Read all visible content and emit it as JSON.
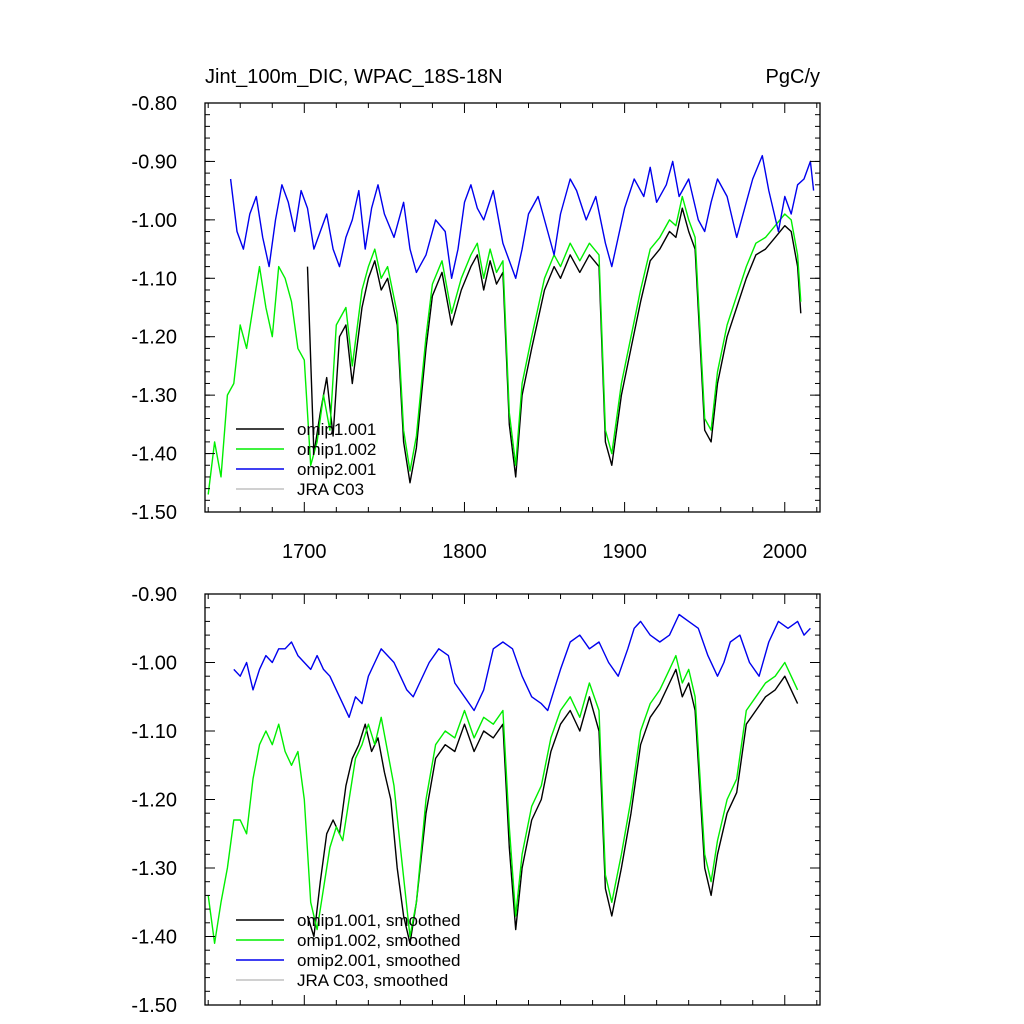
{
  "chart_data": [
    {
      "type": "line",
      "title": "Jint_100m_DIC, WPAC_18S-18N",
      "units": "PgC/y",
      "xlabel": "",
      "ylabel": "",
      "xlim": [
        1638,
        2022
      ],
      "ylim": [
        -1.5,
        -0.8
      ],
      "xticks": [
        1700,
        1800,
        1900,
        2000
      ],
      "xtick_labels": [
        "1700",
        "1800",
        "1900",
        "2000"
      ],
      "yticks": [
        -0.8,
        -0.9,
        -1.0,
        -1.1,
        -1.2,
        -1.3,
        -1.4,
        -1.5
      ],
      "ytick_labels": [
        "-0.80",
        "-0.90",
        "-1.00",
        "-1.10",
        "-1.20",
        "-1.30",
        "-1.40",
        "-1.50"
      ],
      "legend": "bottom-left",
      "series": [
        {
          "name": "omip1.001",
          "color": "#000000",
          "x": [
            1702,
            1706,
            1710,
            1714,
            1718,
            1722,
            1726,
            1730,
            1736,
            1740,
            1744,
            1748,
            1752,
            1758,
            1762,
            1766,
            1770,
            1776,
            1780,
            1786,
            1792,
            1798,
            1804,
            1808,
            1812,
            1816,
            1820,
            1824,
            1828,
            1832,
            1836,
            1842,
            1846,
            1850,
            1856,
            1860,
            1866,
            1872,
            1878,
            1884,
            1888,
            1892,
            1898,
            1904,
            1910,
            1916,
            1922,
            1928,
            1932,
            1936,
            1940,
            1944,
            1950,
            1954,
            1958,
            1964,
            1970,
            1976,
            1982,
            1988,
            1994,
            2000,
            2004,
            2008,
            2010
          ],
          "values": [
            -1.08,
            -1.4,
            -1.33,
            -1.27,
            -1.37,
            -1.2,
            -1.18,
            -1.28,
            -1.15,
            -1.1,
            -1.07,
            -1.12,
            -1.1,
            -1.18,
            -1.38,
            -1.45,
            -1.39,
            -1.22,
            -1.13,
            -1.09,
            -1.18,
            -1.12,
            -1.08,
            -1.06,
            -1.12,
            -1.07,
            -1.11,
            -1.09,
            -1.35,
            -1.44,
            -1.3,
            -1.22,
            -1.17,
            -1.12,
            -1.08,
            -1.1,
            -1.06,
            -1.09,
            -1.06,
            -1.08,
            -1.38,
            -1.42,
            -1.3,
            -1.22,
            -1.14,
            -1.07,
            -1.05,
            -1.02,
            -1.03,
            -0.98,
            -1.02,
            -1.05,
            -1.36,
            -1.38,
            -1.28,
            -1.2,
            -1.15,
            -1.1,
            -1.06,
            -1.05,
            -1.03,
            -1.01,
            -1.02,
            -1.08,
            -1.16
          ]
        },
        {
          "name": "omip1.002",
          "color": "#00ee00",
          "x": [
            1640,
            1644,
            1648,
            1652,
            1656,
            1660,
            1664,
            1668,
            1672,
            1676,
            1680,
            1684,
            1688,
            1692,
            1696,
            1700,
            1704,
            1708,
            1712,
            1716,
            1720,
            1726,
            1730,
            1736,
            1740,
            1744,
            1748,
            1752,
            1758,
            1762,
            1766,
            1770,
            1776,
            1780,
            1786,
            1792,
            1798,
            1804,
            1808,
            1812,
            1816,
            1820,
            1824,
            1828,
            1832,
            1836,
            1842,
            1846,
            1850,
            1856,
            1860,
            1866,
            1872,
            1878,
            1884,
            1888,
            1892,
            1898,
            1904,
            1910,
            1916,
            1922,
            1928,
            1932,
            1936,
            1940,
            1944,
            1950,
            1954,
            1958,
            1964,
            1970,
            1976,
            1982,
            1988,
            1994,
            2000,
            2004,
            2008,
            2010
          ],
          "values": [
            -1.47,
            -1.38,
            -1.44,
            -1.3,
            -1.28,
            -1.18,
            -1.22,
            -1.15,
            -1.08,
            -1.15,
            -1.2,
            -1.08,
            -1.1,
            -1.14,
            -1.22,
            -1.24,
            -1.42,
            -1.38,
            -1.3,
            -1.36,
            -1.18,
            -1.15,
            -1.25,
            -1.12,
            -1.08,
            -1.05,
            -1.1,
            -1.08,
            -1.16,
            -1.36,
            -1.43,
            -1.37,
            -1.2,
            -1.11,
            -1.07,
            -1.16,
            -1.1,
            -1.06,
            -1.04,
            -1.1,
            -1.05,
            -1.09,
            -1.07,
            -1.33,
            -1.42,
            -1.28,
            -1.2,
            -1.15,
            -1.1,
            -1.06,
            -1.08,
            -1.04,
            -1.07,
            -1.04,
            -1.06,
            -1.36,
            -1.4,
            -1.28,
            -1.2,
            -1.12,
            -1.05,
            -1.03,
            -1.0,
            -1.01,
            -0.96,
            -1.0,
            -1.03,
            -1.34,
            -1.36,
            -1.26,
            -1.18,
            -1.13,
            -1.08,
            -1.04,
            -1.03,
            -1.01,
            -0.99,
            -1.0,
            -1.06,
            -1.14
          ]
        },
        {
          "name": "omip2.001",
          "color": "#0000ee",
          "x": [
            1654,
            1658,
            1662,
            1666,
            1670,
            1674,
            1678,
            1682,
            1686,
            1690,
            1694,
            1698,
            1702,
            1706,
            1710,
            1714,
            1718,
            1722,
            1726,
            1730,
            1734,
            1738,
            1742,
            1746,
            1750,
            1756,
            1762,
            1766,
            1770,
            1776,
            1782,
            1788,
            1792,
            1796,
            1800,
            1804,
            1808,
            1812,
            1818,
            1824,
            1828,
            1832,
            1836,
            1840,
            1846,
            1852,
            1856,
            1860,
            1866,
            1870,
            1876,
            1882,
            1888,
            1892,
            1896,
            1900,
            1906,
            1912,
            1916,
            1920,
            1926,
            1930,
            1934,
            1940,
            1946,
            1950,
            1954,
            1958,
            1964,
            1970,
            1976,
            1980,
            1986,
            1990,
            1996,
            2000,
            2004,
            2008,
            2012,
            2016,
            2018
          ],
          "values": [
            -0.93,
            -1.02,
            -1.05,
            -0.99,
            -0.96,
            -1.03,
            -1.08,
            -1.0,
            -0.94,
            -0.97,
            -1.02,
            -0.95,
            -0.98,
            -1.05,
            -1.02,
            -0.99,
            -1.05,
            -1.08,
            -1.03,
            -1.0,
            -0.95,
            -1.05,
            -0.98,
            -0.94,
            -0.99,
            -1.03,
            -0.97,
            -1.05,
            -1.09,
            -1.06,
            -1.0,
            -1.02,
            -1.1,
            -1.05,
            -0.97,
            -0.94,
            -0.98,
            -1.0,
            -0.95,
            -1.04,
            -1.07,
            -1.1,
            -1.05,
            -0.99,
            -0.96,
            -1.02,
            -1.06,
            -0.99,
            -0.93,
            -0.95,
            -1.0,
            -0.96,
            -1.04,
            -1.08,
            -1.03,
            -0.98,
            -0.93,
            -0.96,
            -0.91,
            -0.97,
            -0.94,
            -0.9,
            -0.96,
            -0.93,
            -1.0,
            -1.02,
            -0.97,
            -0.93,
            -0.96,
            -1.03,
            -0.97,
            -0.93,
            -0.89,
            -0.95,
            -1.02,
            -0.96,
            -0.99,
            -0.94,
            -0.93,
            -0.9,
            -0.95
          ]
        },
        {
          "name": "JRA C03",
          "color": "#c0c0c0",
          "x": [],
          "values": []
        }
      ]
    },
    {
      "type": "line",
      "title": "",
      "xlabel": "",
      "ylabel": "",
      "xlim": [
        1638,
        2022
      ],
      "ylim": [
        -1.5,
        -0.9
      ],
      "xticks": [
        1700,
        1800,
        1900,
        2000
      ],
      "xtick_labels": [],
      "yticks": [
        -0.9,
        -1.0,
        -1.1,
        -1.2,
        -1.3,
        -1.4,
        -1.5
      ],
      "ytick_labels": [
        "-0.90",
        "-1.00",
        "-1.10",
        "-1.20",
        "-1.30",
        "-1.40",
        "-1.50"
      ],
      "legend": "bottom-left",
      "series": [
        {
          "name": "omip1.001, smoothed",
          "color": "#000000",
          "x": [
            1702,
            1706,
            1710,
            1714,
            1718,
            1722,
            1726,
            1730,
            1734,
            1738,
            1742,
            1746,
            1750,
            1754,
            1758,
            1762,
            1766,
            1770,
            1776,
            1782,
            1788,
            1794,
            1800,
            1806,
            1812,
            1818,
            1824,
            1828,
            1832,
            1836,
            1842,
            1848,
            1854,
            1860,
            1866,
            1872,
            1878,
            1884,
            1888,
            1892,
            1898,
            1904,
            1910,
            1916,
            1922,
            1928,
            1932,
            1936,
            1940,
            1944,
            1950,
            1954,
            1958,
            1964,
            1970,
            1976,
            1982,
            1988,
            1994,
            2000,
            2004,
            2008
          ],
          "values": [
            -1.37,
            -1.4,
            -1.32,
            -1.25,
            -1.23,
            -1.25,
            -1.18,
            -1.14,
            -1.12,
            -1.09,
            -1.13,
            -1.11,
            -1.16,
            -1.2,
            -1.3,
            -1.37,
            -1.41,
            -1.35,
            -1.22,
            -1.14,
            -1.12,
            -1.13,
            -1.09,
            -1.13,
            -1.1,
            -1.11,
            -1.09,
            -1.27,
            -1.39,
            -1.3,
            -1.23,
            -1.2,
            -1.13,
            -1.09,
            -1.07,
            -1.1,
            -1.05,
            -1.1,
            -1.33,
            -1.37,
            -1.3,
            -1.22,
            -1.12,
            -1.08,
            -1.06,
            -1.03,
            -1.01,
            -1.05,
            -1.03,
            -1.07,
            -1.3,
            -1.34,
            -1.28,
            -1.22,
            -1.19,
            -1.09,
            -1.07,
            -1.05,
            -1.04,
            -1.02,
            -1.04,
            -1.06
          ]
        },
        {
          "name": "omip1.002, smoothed",
          "color": "#00ee00",
          "x": [
            1640,
            1644,
            1648,
            1652,
            1656,
            1660,
            1664,
            1668,
            1672,
            1676,
            1680,
            1684,
            1688,
            1692,
            1696,
            1700,
            1704,
            1708,
            1712,
            1716,
            1720,
            1724,
            1728,
            1732,
            1736,
            1740,
            1744,
            1748,
            1752,
            1756,
            1760,
            1766,
            1770,
            1776,
            1782,
            1788,
            1794,
            1800,
            1806,
            1812,
            1818,
            1824,
            1828,
            1832,
            1836,
            1842,
            1848,
            1854,
            1860,
            1866,
            1872,
            1878,
            1884,
            1888,
            1892,
            1898,
            1904,
            1910,
            1916,
            1922,
            1928,
            1932,
            1936,
            1940,
            1944,
            1950,
            1954,
            1958,
            1964,
            1970,
            1976,
            1982,
            1988,
            1994,
            2000,
            2004,
            2008
          ],
          "values": [
            -1.34,
            -1.41,
            -1.35,
            -1.3,
            -1.23,
            -1.23,
            -1.25,
            -1.17,
            -1.12,
            -1.1,
            -1.12,
            -1.09,
            -1.13,
            -1.15,
            -1.13,
            -1.2,
            -1.35,
            -1.39,
            -1.33,
            -1.27,
            -1.24,
            -1.26,
            -1.2,
            -1.14,
            -1.12,
            -1.09,
            -1.12,
            -1.08,
            -1.13,
            -1.18,
            -1.27,
            -1.4,
            -1.35,
            -1.2,
            -1.12,
            -1.1,
            -1.11,
            -1.07,
            -1.11,
            -1.08,
            -1.09,
            -1.07,
            -1.24,
            -1.37,
            -1.28,
            -1.21,
            -1.18,
            -1.11,
            -1.07,
            -1.05,
            -1.08,
            -1.03,
            -1.07,
            -1.31,
            -1.35,
            -1.28,
            -1.2,
            -1.1,
            -1.06,
            -1.04,
            -1.01,
            -0.99,
            -1.03,
            -1.01,
            -1.05,
            -1.28,
            -1.32,
            -1.26,
            -1.2,
            -1.17,
            -1.07,
            -1.05,
            -1.03,
            -1.02,
            -1.0,
            -1.02,
            -1.04
          ]
        },
        {
          "name": "omip2.001, smoothed",
          "color": "#0000ee",
          "x": [
            1656,
            1660,
            1664,
            1668,
            1672,
            1676,
            1680,
            1684,
            1688,
            1692,
            1696,
            1700,
            1704,
            1708,
            1712,
            1716,
            1720,
            1724,
            1728,
            1732,
            1736,
            1740,
            1744,
            1748,
            1752,
            1756,
            1760,
            1764,
            1768,
            1772,
            1778,
            1784,
            1790,
            1794,
            1800,
            1806,
            1812,
            1818,
            1824,
            1830,
            1836,
            1842,
            1848,
            1852,
            1856,
            1860,
            1866,
            1872,
            1878,
            1884,
            1890,
            1896,
            1902,
            1906,
            1910,
            1916,
            1922,
            1928,
            1934,
            1940,
            1946,
            1952,
            1958,
            1962,
            1966,
            1972,
            1978,
            1984,
            1990,
            1996,
            2002,
            2008,
            2012,
            2016
          ],
          "values": [
            -1.01,
            -1.02,
            -1.0,
            -1.04,
            -1.01,
            -0.99,
            -1.0,
            -0.98,
            -0.98,
            -0.97,
            -0.99,
            -1.0,
            -1.01,
            -0.99,
            -1.01,
            -1.02,
            -1.04,
            -1.06,
            -1.08,
            -1.05,
            -1.06,
            -1.02,
            -1.0,
            -0.98,
            -0.99,
            -1.0,
            -1.02,
            -1.04,
            -1.05,
            -1.03,
            -1.0,
            -0.98,
            -0.99,
            -1.03,
            -1.05,
            -1.07,
            -1.04,
            -0.98,
            -0.97,
            -0.98,
            -1.02,
            -1.05,
            -1.06,
            -1.07,
            -1.04,
            -1.01,
            -0.97,
            -0.96,
            -0.98,
            -0.97,
            -1.0,
            -1.02,
            -0.98,
            -0.95,
            -0.94,
            -0.96,
            -0.97,
            -0.96,
            -0.93,
            -0.94,
            -0.95,
            -0.99,
            -1.02,
            -1.0,
            -0.97,
            -0.96,
            -1.0,
            -1.02,
            -0.97,
            -0.94,
            -0.95,
            -0.94,
            -0.96,
            -0.95
          ]
        },
        {
          "name": "JRA C03, smoothed",
          "color": "#c0c0c0",
          "x": [],
          "values": []
        }
      ]
    }
  ]
}
